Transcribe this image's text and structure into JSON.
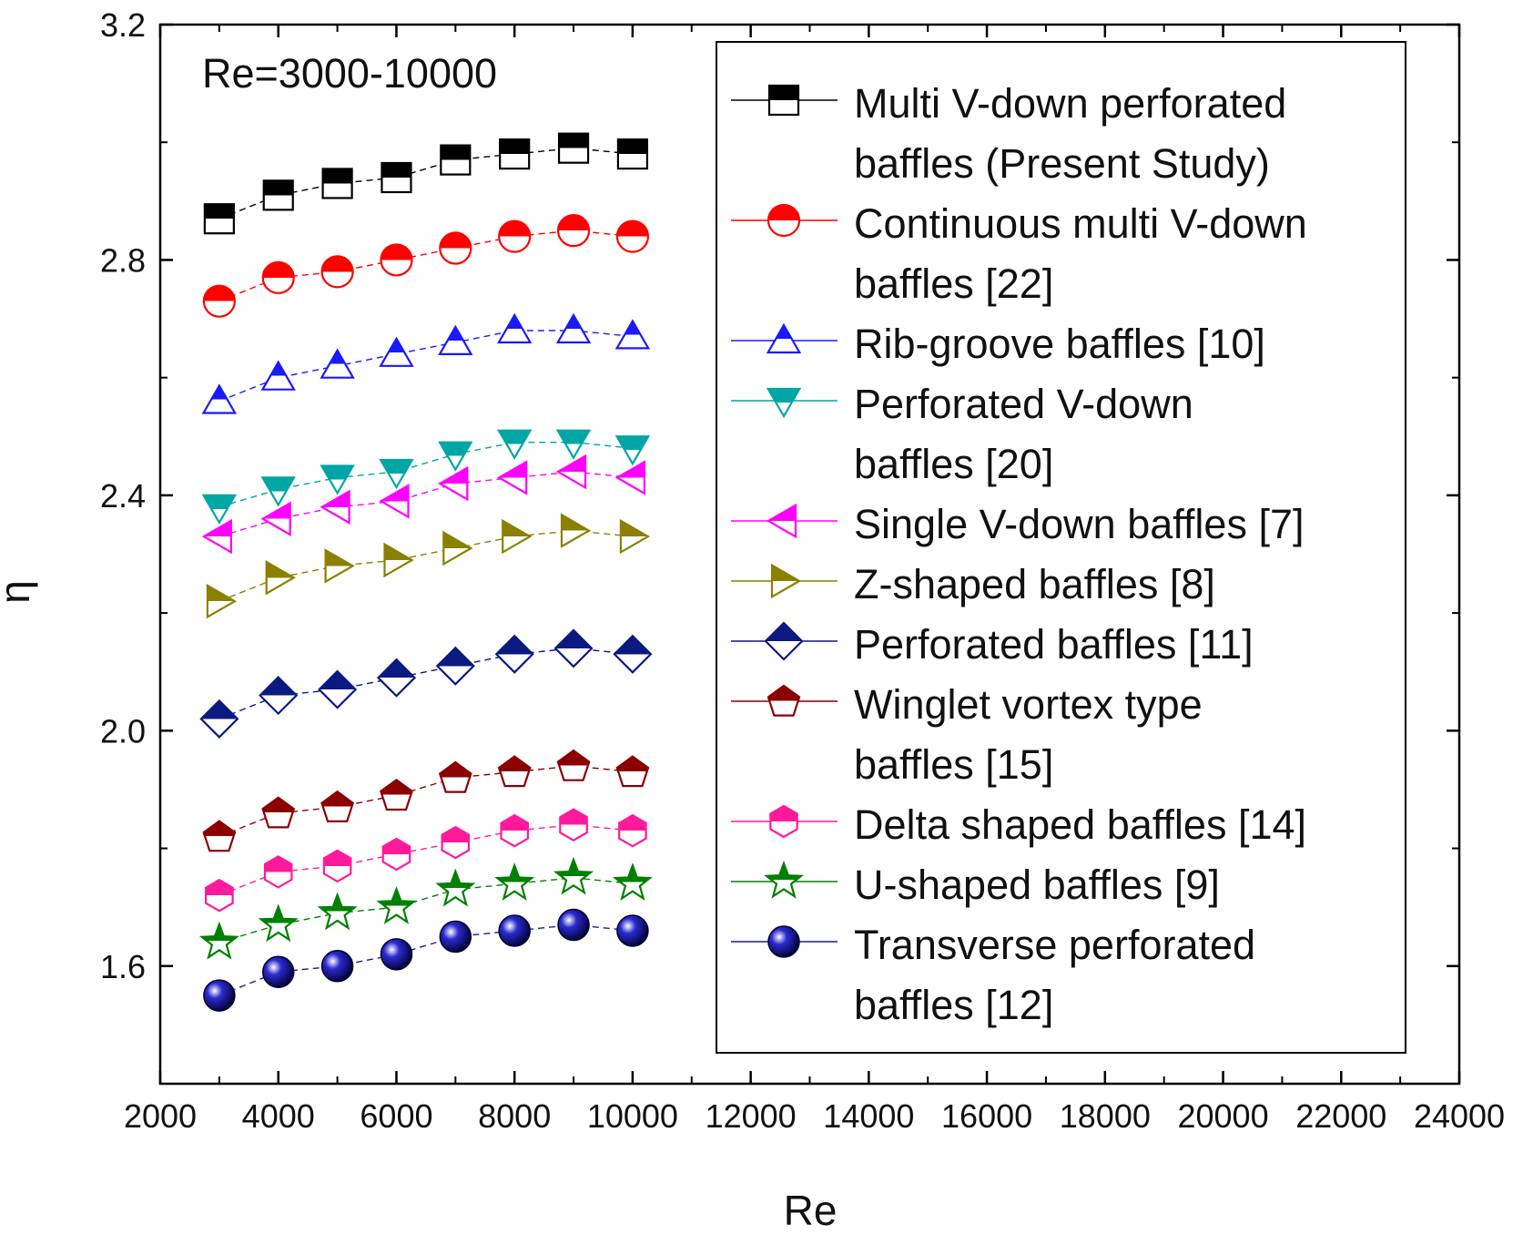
{
  "chart_data": {
    "type": "scatter",
    "title": "",
    "annotation": "Re=3000-10000",
    "xlabel": "Re",
    "ylabel": "η",
    "xlim": [
      2000,
      24000
    ],
    "ylim": [
      1.4,
      3.2
    ],
    "x_ticks": [
      "2000",
      "4000",
      "6000",
      "8000",
      "10000",
      "12000",
      "14000",
      "16000",
      "18000",
      "20000",
      "22000",
      "24000"
    ],
    "y_ticks": [
      "1.6",
      "2.0",
      "2.4",
      "2.8",
      "3.2"
    ],
    "x": [
      3000,
      4000,
      5000,
      6000,
      7000,
      8000,
      9000,
      10000
    ],
    "legend_position": "top-right",
    "series": [
      {
        "name": "Multi V-down perforated baffles (Present Study)",
        "legend_lines": [
          "Multi V-down perforated",
          "baffles (Present Study)"
        ],
        "marker": "square",
        "color": "#000000",
        "values": [
          2.87,
          2.91,
          2.93,
          2.94,
          2.97,
          2.98,
          2.99,
          2.98
        ]
      },
      {
        "name": "Continuous multi V-down baffles [22]",
        "legend_lines": [
          "Continuous multi V-down",
          "baffles [22]"
        ],
        "marker": "circle",
        "color": "#ff0000",
        "values": [
          2.73,
          2.77,
          2.78,
          2.8,
          2.82,
          2.84,
          2.85,
          2.84
        ]
      },
      {
        "name": "Rib-groove baffles [10]",
        "legend_lines": [
          "Rib-groove baffles [10]"
        ],
        "marker": "triangle-up",
        "color": "#1a1aff",
        "values": [
          2.56,
          2.6,
          2.62,
          2.64,
          2.66,
          2.68,
          2.68,
          2.67
        ]
      },
      {
        "name": "Perforated V-down baffles [20]",
        "legend_lines": [
          "Perforated V-down",
          "baffles [20]"
        ],
        "marker": "triangle-down",
        "color": "#00a6a6",
        "values": [
          2.38,
          2.41,
          2.43,
          2.44,
          2.47,
          2.49,
          2.49,
          2.48
        ]
      },
      {
        "name": "Single V-down baffles [7]",
        "legend_lines": [
          "Single V-down baffles [7]"
        ],
        "marker": "triangle-left",
        "color": "#ff00ff",
        "values": [
          2.33,
          2.36,
          2.38,
          2.39,
          2.42,
          2.43,
          2.44,
          2.43
        ]
      },
      {
        "name": "Z-shaped baffles [8]",
        "legend_lines": [
          "Z-shaped baffles [8]"
        ],
        "marker": "triangle-right",
        "color": "#8b8000",
        "values": [
          2.22,
          2.26,
          2.28,
          2.29,
          2.31,
          2.33,
          2.34,
          2.33
        ]
      },
      {
        "name": "Perforated baffles [11]",
        "legend_lines": [
          "Perforated baffles [11]"
        ],
        "marker": "diamond",
        "color": "#0a1a80",
        "values": [
          2.02,
          2.06,
          2.07,
          2.09,
          2.11,
          2.13,
          2.14,
          2.13
        ]
      },
      {
        "name": "Winglet vortex type baffles [15]",
        "legend_lines": [
          "Winglet vortex type",
          "baffles [15]"
        ],
        "marker": "pentagon",
        "color": "#8b0000",
        "values": [
          1.82,
          1.86,
          1.87,
          1.89,
          1.92,
          1.93,
          1.94,
          1.93
        ]
      },
      {
        "name": "Delta shaped baffles [14]",
        "legend_lines": [
          "Delta shaped baffles [14]"
        ],
        "marker": "hexagon",
        "color": "#ff1a9c",
        "values": [
          1.72,
          1.76,
          1.77,
          1.79,
          1.81,
          1.83,
          1.84,
          1.83
        ]
      },
      {
        "name": "U-shaped baffles [9]",
        "legend_lines": [
          "U-shaped baffles [9]"
        ],
        "marker": "star",
        "color": "#008000",
        "values": [
          1.64,
          1.67,
          1.69,
          1.7,
          1.73,
          1.74,
          1.75,
          1.74
        ]
      },
      {
        "name": "Transverse perforated baffles [12]",
        "legend_lines": [
          "Transverse perforated",
          "baffles [12]"
        ],
        "marker": "sphere",
        "color": "#1c1c8c",
        "values": [
          1.55,
          1.59,
          1.6,
          1.62,
          1.65,
          1.66,
          1.67,
          1.66
        ]
      }
    ]
  }
}
